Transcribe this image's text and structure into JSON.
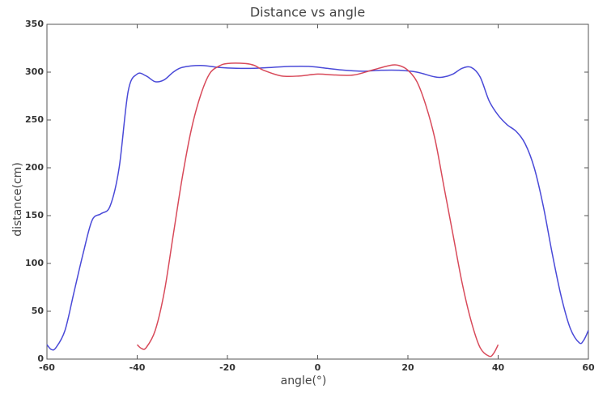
{
  "chart_data": {
    "type": "line",
    "title": "Distance vs angle",
    "x_label": "angle(°)",
    "y_label": "distance(cm)",
    "series": [
      {
        "color": "#4a4ad8",
        "x": [
          -60,
          -59,
          -58,
          -56,
          -54,
          -52,
          -50,
          -48,
          -46,
          -44,
          -42,
          -40,
          -38,
          -36,
          -34,
          -32,
          -30,
          -26,
          -22,
          -18,
          -14,
          -10,
          -6,
          -2,
          2,
          6,
          10,
          14,
          18,
          22,
          26,
          28,
          30,
          32,
          34,
          36,
          38,
          40,
          42,
          44,
          46,
          48,
          50,
          52,
          54,
          56,
          58,
          59,
          60
        ],
        "values": [
          15,
          10,
          12,
          30,
          70,
          110,
          145,
          152,
          160,
          200,
          280,
          298,
          296,
          290,
          292,
          300,
          305,
          307,
          305,
          304,
          304,
          305,
          306,
          306,
          304,
          302,
          301,
          302,
          302,
          300,
          295,
          295,
          298,
          304,
          305,
          295,
          270,
          255,
          245,
          238,
          225,
          200,
          160,
          110,
          65,
          32,
          17,
          20,
          30
        ]
      },
      {
        "color": "#d84a5a",
        "x": [
          -40,
          -39,
          -38,
          -36,
          -34,
          -32,
          -30,
          -28,
          -26,
          -24,
          -22,
          -20,
          -16,
          -14,
          -12,
          -8,
          -4,
          0,
          4,
          8,
          12,
          16,
          18,
          20,
          22,
          24,
          26,
          28,
          30,
          32,
          34,
          36,
          38,
          39,
          40
        ],
        "values": [
          15,
          11,
          12,
          30,
          70,
          130,
          190,
          240,
          275,
          298,
          306,
          309,
          309,
          307,
          302,
          296,
          296,
          298,
          297,
          297,
          302,
          307,
          307,
          302,
          290,
          265,
          230,
          180,
          130,
          80,
          40,
          12,
          3,
          6,
          15
        ]
      }
    ],
    "xlim": [
      -60,
      60
    ],
    "xticks": [
      -60,
      -40,
      -20,
      0,
      20,
      40,
      60
    ],
    "ylim": [
      0,
      350
    ],
    "yticks": [
      0,
      50,
      100,
      150,
      200,
      250,
      300,
      350
    ]
  }
}
